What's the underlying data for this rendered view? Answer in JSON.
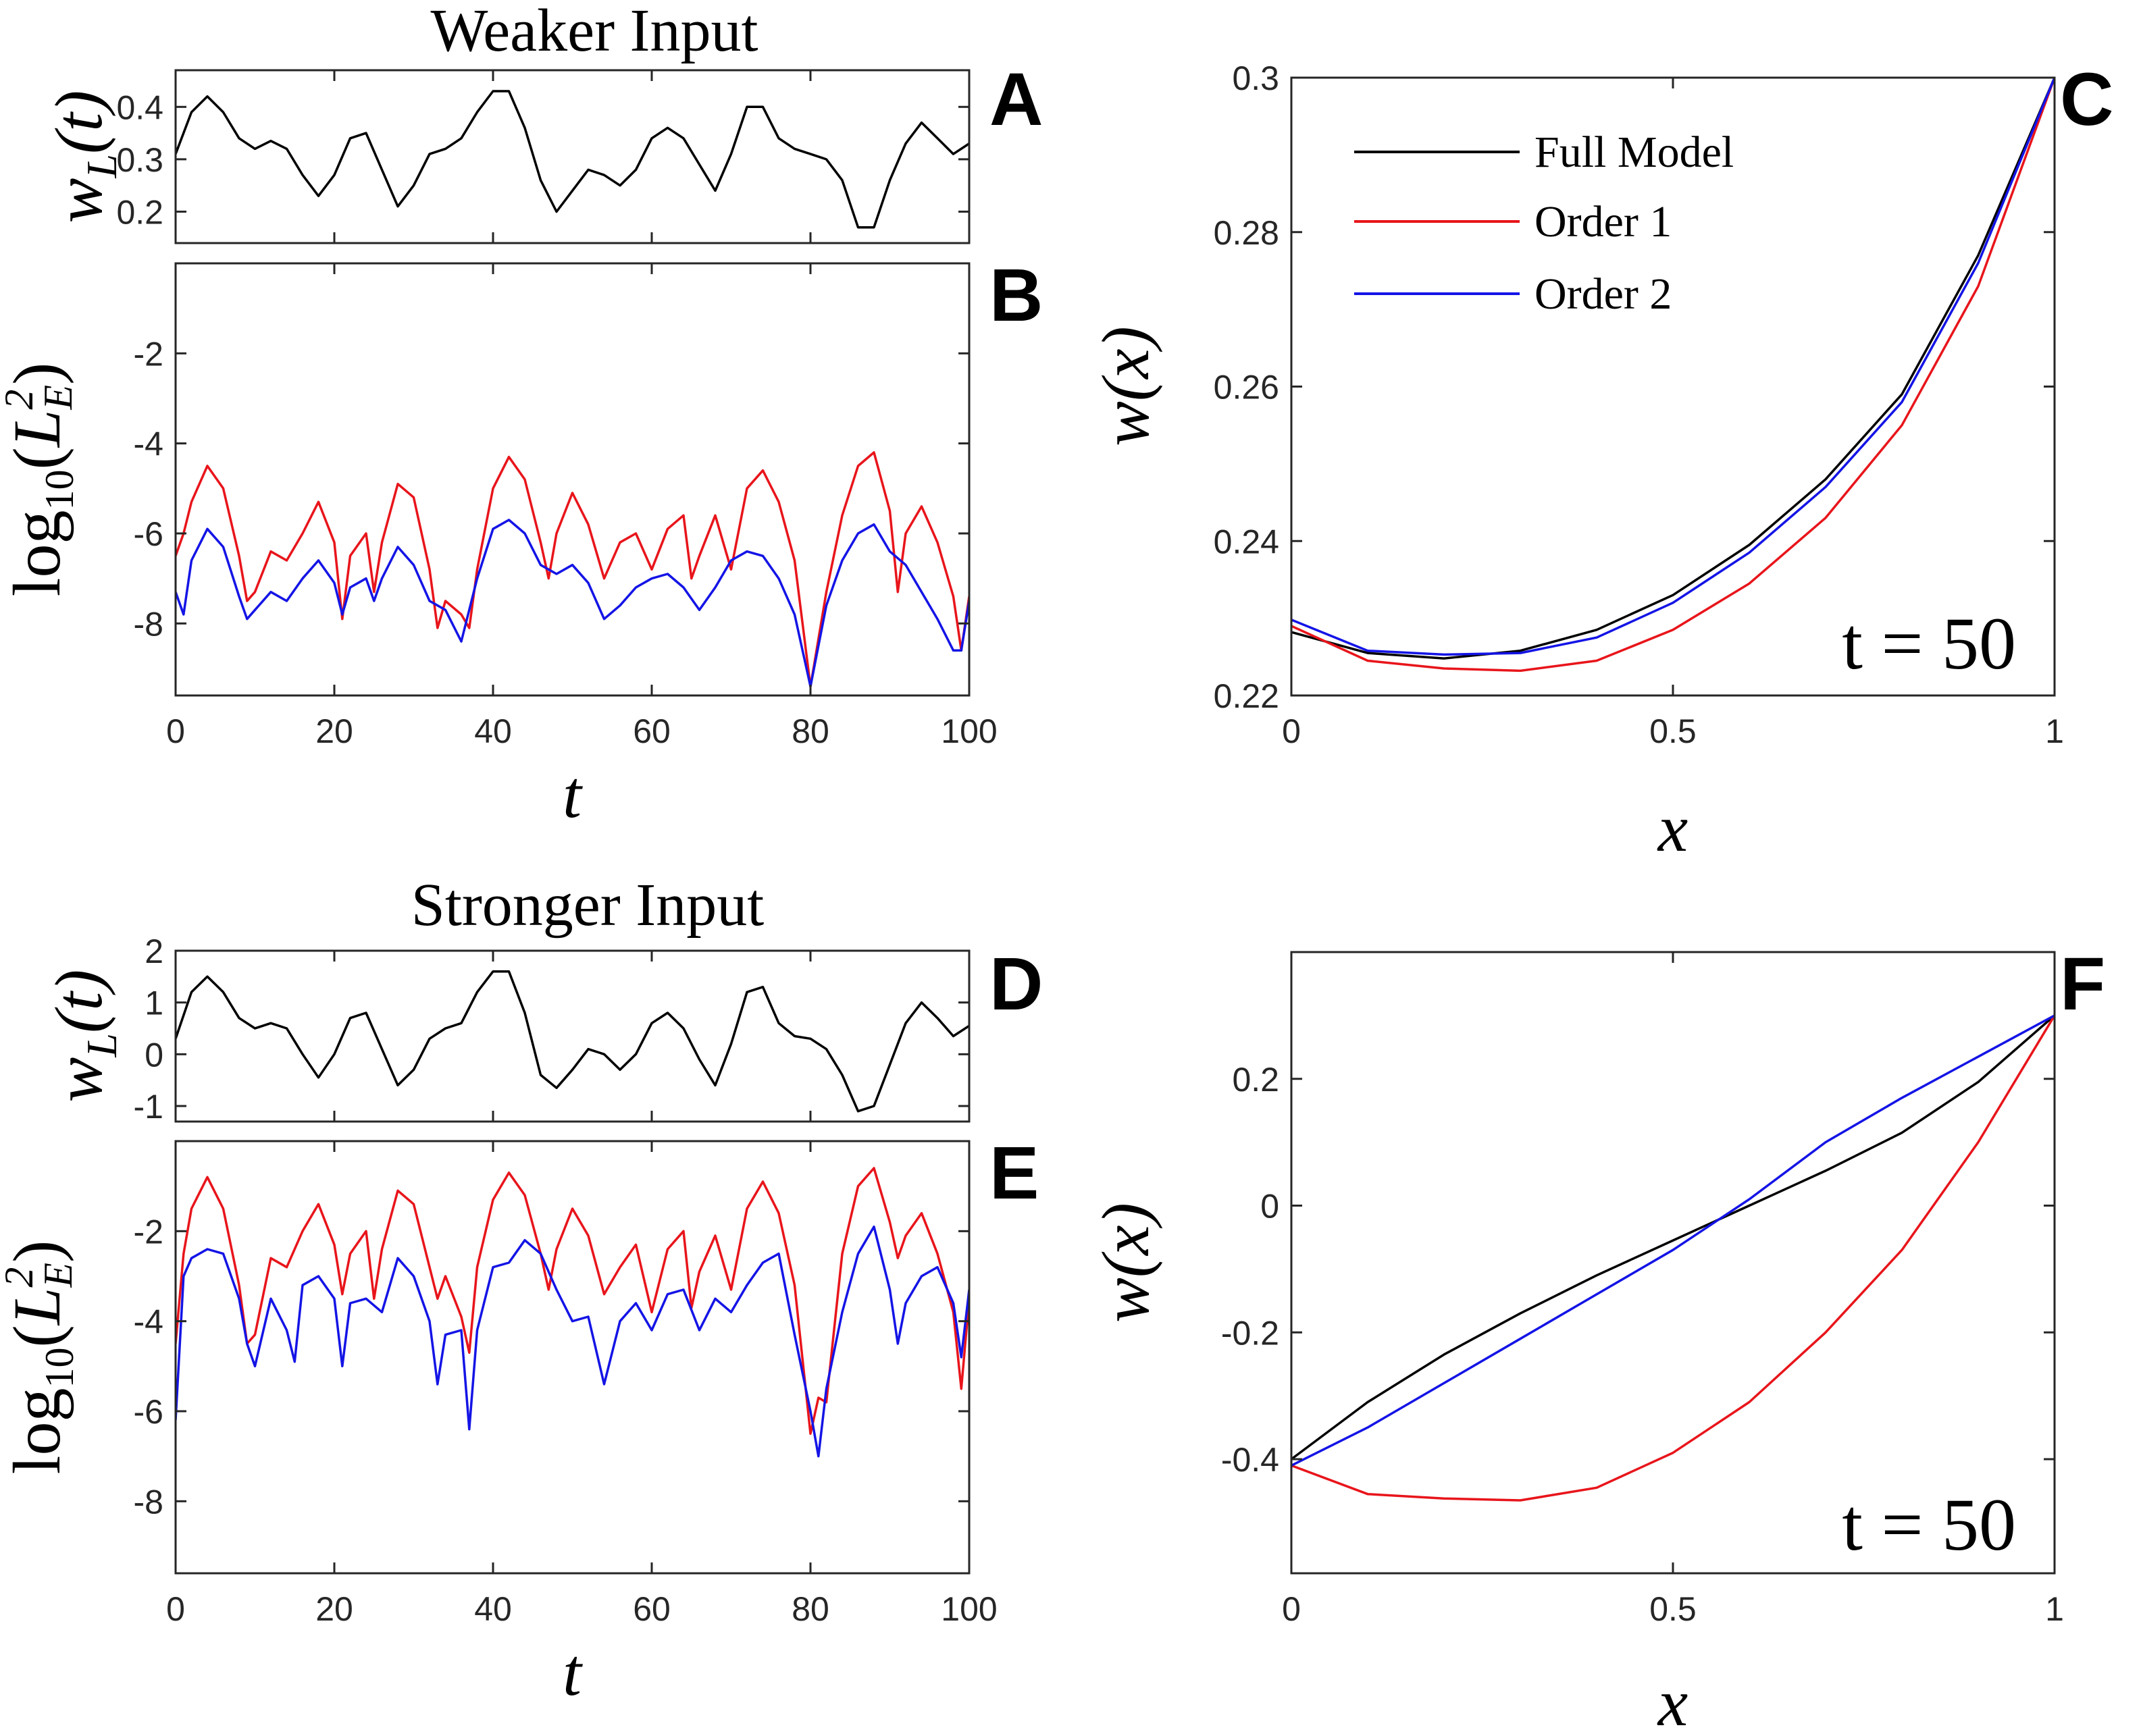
{
  "figure": {
    "panel_letters": {
      "A": "A",
      "B": "B",
      "C": "C",
      "D": "D",
      "E": "E",
      "F": "F"
    },
    "row_titles": {
      "top": "Weaker Input",
      "bottom": "Stronger Input"
    }
  },
  "colors": {
    "full_model": "#000000",
    "order1": "#e8151b",
    "order2": "#1414e6"
  },
  "chart_data": [
    {
      "id": "A",
      "type": "line",
      "title": "Weaker Input",
      "xlabel": "",
      "ylabel": "w_L(t)",
      "xlim": [
        0,
        100
      ],
      "ylim": [
        0.14,
        0.47
      ],
      "xticks": [
        0,
        20,
        40,
        60,
        80,
        100
      ],
      "show_xtick_labels": false,
      "yticks": [
        0.2,
        0.3,
        0.4
      ],
      "ytick_labels": [
        "0.2",
        "0.3",
        "0.4"
      ],
      "series": [
        {
          "name": "w_L",
          "color": "#000000",
          "x": [
            0,
            2,
            4,
            6,
            8,
            10,
            12,
            14,
            16,
            18,
            20,
            22,
            24,
            26,
            28,
            30,
            32,
            34,
            36,
            38,
            40,
            42,
            44,
            46,
            48,
            50,
            52,
            54,
            56,
            58,
            60,
            62,
            64,
            66,
            68,
            70,
            72,
            74,
            76,
            78,
            80,
            82,
            84,
            86,
            88,
            90,
            92,
            94,
            96,
            98,
            100
          ],
          "y": [
            0.31,
            0.39,
            0.42,
            0.39,
            0.34,
            0.32,
            0.335,
            0.32,
            0.27,
            0.23,
            0.27,
            0.34,
            0.35,
            0.28,
            0.21,
            0.25,
            0.31,
            0.32,
            0.34,
            0.39,
            0.43,
            0.43,
            0.36,
            0.26,
            0.2,
            0.24,
            0.28,
            0.27,
            0.25,
            0.28,
            0.34,
            0.36,
            0.34,
            0.29,
            0.24,
            0.31,
            0.4,
            0.4,
            0.34,
            0.32,
            0.31,
            0.3,
            0.26,
            0.17,
            0.17,
            0.26,
            0.33,
            0.37,
            0.34,
            0.31,
            0.33
          ]
        }
      ]
    },
    {
      "id": "B",
      "type": "line",
      "xlabel": "t",
      "ylabel": "log10(L_E^2)",
      "xlim": [
        0,
        100
      ],
      "ylim": [
        -9.6,
        0
      ],
      "xticks": [
        0,
        20,
        40,
        60,
        80,
        100
      ],
      "xtick_labels": [
        "0",
        "20",
        "40",
        "60",
        "80",
        "100"
      ],
      "yticks": [
        -8,
        -6,
        -4,
        -2
      ],
      "ytick_labels": [
        "-8",
        "-6",
        "-4",
        "-2"
      ],
      "series": [
        {
          "name": "Order 1",
          "color": "#e8151b",
          "x": [
            0,
            1,
            2,
            4,
            6,
            8,
            9,
            10,
            12,
            14,
            16,
            18,
            20,
            21,
            22,
            24,
            25,
            26,
            28,
            30,
            32,
            33,
            34,
            36,
            37,
            38,
            40,
            42,
            44,
            46,
            47,
            48,
            50,
            52,
            54,
            56,
            58,
            60,
            62,
            64,
            65,
            66,
            68,
            70,
            72,
            74,
            76,
            78,
            80,
            82,
            84,
            86,
            88,
            90,
            91,
            92,
            94,
            96,
            98,
            99,
            100
          ],
          "y": [
            -6.5,
            -6.0,
            -5.3,
            -4.5,
            -5.0,
            -6.5,
            -7.5,
            -7.3,
            -6.4,
            -6.6,
            -6.0,
            -5.3,
            -6.2,
            -7.9,
            -6.5,
            -6.0,
            -7.3,
            -6.2,
            -4.9,
            -5.2,
            -6.8,
            -8.1,
            -7.5,
            -7.8,
            -8.1,
            -6.8,
            -5.0,
            -4.3,
            -4.8,
            -6.2,
            -7.0,
            -6.0,
            -5.1,
            -5.8,
            -7.0,
            -6.2,
            -6.0,
            -6.8,
            -5.9,
            -5.6,
            -7.0,
            -6.5,
            -5.6,
            -6.8,
            -5.0,
            -4.6,
            -5.3,
            -6.6,
            -9.4,
            -7.3,
            -5.6,
            -4.5,
            -4.2,
            -5.5,
            -7.3,
            -6.0,
            -5.4,
            -6.2,
            -7.4,
            -8.6,
            -7.4
          ]
        },
        {
          "name": "Order 2",
          "color": "#1414e6",
          "x": [
            0,
            1,
            2,
            4,
            6,
            8,
            9,
            10,
            12,
            14,
            16,
            18,
            20,
            21,
            22,
            24,
            25,
            26,
            28,
            30,
            32,
            34,
            36,
            38,
            40,
            42,
            44,
            46,
            48,
            50,
            52,
            54,
            56,
            58,
            60,
            62,
            64,
            66,
            68,
            70,
            72,
            74,
            76,
            78,
            80,
            82,
            84,
            86,
            88,
            90,
            92,
            94,
            96,
            98,
            99,
            100
          ],
          "y": [
            -7.3,
            -7.8,
            -6.6,
            -5.9,
            -6.3,
            -7.4,
            -7.9,
            -7.7,
            -7.3,
            -7.5,
            -7.0,
            -6.6,
            -7.1,
            -7.8,
            -7.2,
            -7.0,
            -7.5,
            -7.0,
            -6.3,
            -6.7,
            -7.5,
            -7.7,
            -8.4,
            -7.0,
            -5.9,
            -5.7,
            -6.0,
            -6.7,
            -6.9,
            -6.7,
            -7.1,
            -7.9,
            -7.6,
            -7.2,
            -7.0,
            -6.9,
            -7.2,
            -7.7,
            -7.2,
            -6.6,
            -6.4,
            -6.5,
            -7.0,
            -7.8,
            -9.4,
            -7.6,
            -6.6,
            -6.0,
            -5.8,
            -6.4,
            -6.7,
            -7.3,
            -7.9,
            -8.6,
            -8.6,
            -7.5
          ]
        }
      ]
    },
    {
      "id": "C",
      "type": "line",
      "xlabel": "x",
      "ylabel": "w(x)",
      "xlim": [
        0,
        1
      ],
      "ylim": [
        0.22,
        0.3
      ],
      "xticks": [
        0,
        0.5,
        1
      ],
      "xtick_labels": [
        "0",
        "0.5",
        "1"
      ],
      "yticks": [
        0.22,
        0.24,
        0.26,
        0.28,
        0.3
      ],
      "ytick_labels": [
        "0.22",
        "0.24",
        "0.26",
        "0.28",
        "0.3"
      ],
      "annotation": "t = 50",
      "legend": {
        "position": "top-left",
        "entries": [
          "Full Model",
          "Order 1",
          "Order 2"
        ]
      },
      "series": [
        {
          "name": "Full Model",
          "color": "#000000",
          "x": [
            0,
            0.1,
            0.2,
            0.3,
            0.4,
            0.5,
            0.6,
            0.7,
            0.8,
            0.9,
            1.0
          ],
          "y": [
            0.2282,
            0.2255,
            0.2248,
            0.2258,
            0.2285,
            0.233,
            0.2395,
            0.248,
            0.259,
            0.277,
            0.3
          ]
        },
        {
          "name": "Order 1",
          "color": "#e8151b",
          "x": [
            0,
            0.1,
            0.2,
            0.3,
            0.4,
            0.5,
            0.6,
            0.7,
            0.8,
            0.9,
            1.0
          ],
          "y": [
            0.229,
            0.2245,
            0.2235,
            0.2232,
            0.2245,
            0.2285,
            0.2345,
            0.243,
            0.255,
            0.273,
            0.3
          ]
        },
        {
          "name": "Order 2",
          "color": "#1414e6",
          "x": [
            0,
            0.1,
            0.2,
            0.3,
            0.4,
            0.5,
            0.6,
            0.7,
            0.8,
            0.9,
            1.0
          ],
          "y": [
            0.2298,
            0.2258,
            0.2253,
            0.2255,
            0.2275,
            0.232,
            0.2385,
            0.247,
            0.258,
            0.276,
            0.3
          ]
        }
      ]
    },
    {
      "id": "D",
      "type": "line",
      "title": "Stronger Input",
      "xlabel": "",
      "ylabel": "w_L(t)",
      "xlim": [
        0,
        100
      ],
      "ylim": [
        -1.3,
        2.0
      ],
      "xticks": [
        0,
        20,
        40,
        60,
        80,
        100
      ],
      "show_xtick_labels": false,
      "yticks": [
        -1,
        0,
        1,
        2
      ],
      "ytick_labels": [
        "-1",
        "0",
        "1",
        "2"
      ],
      "series": [
        {
          "name": "w_L",
          "color": "#000000",
          "x": [
            0,
            2,
            4,
            6,
            8,
            10,
            12,
            14,
            16,
            18,
            20,
            22,
            24,
            26,
            28,
            30,
            32,
            34,
            36,
            38,
            40,
            42,
            44,
            46,
            48,
            50,
            52,
            54,
            56,
            58,
            60,
            62,
            64,
            66,
            68,
            70,
            72,
            74,
            76,
            78,
            80,
            82,
            84,
            86,
            88,
            90,
            92,
            94,
            96,
            98,
            100
          ],
          "y": [
            0.3,
            1.2,
            1.5,
            1.2,
            0.7,
            0.5,
            0.6,
            0.5,
            0.0,
            -0.45,
            0.0,
            0.7,
            0.8,
            0.1,
            -0.6,
            -0.3,
            0.3,
            0.5,
            0.6,
            1.2,
            1.6,
            1.6,
            0.8,
            -0.4,
            -0.65,
            -0.3,
            0.1,
            0.0,
            -0.3,
            0.0,
            0.6,
            0.8,
            0.5,
            -0.1,
            -0.6,
            0.2,
            1.2,
            1.3,
            0.6,
            0.35,
            0.3,
            0.1,
            -0.4,
            -1.1,
            -1.0,
            -0.2,
            0.6,
            1.0,
            0.7,
            0.35,
            0.55
          ]
        }
      ]
    },
    {
      "id": "E",
      "type": "line",
      "xlabel": "t",
      "ylabel": "log10(L_E^2)",
      "xlim": [
        0,
        100
      ],
      "ylim": [
        -9.6,
        0
      ],
      "xticks": [
        0,
        20,
        40,
        60,
        80,
        100
      ],
      "xtick_labels": [
        "0",
        "20",
        "40",
        "60",
        "80",
        "100"
      ],
      "yticks": [
        -8,
        -6,
        -4,
        -2
      ],
      "ytick_labels": [
        "-8",
        "-6",
        "-4",
        "-2"
      ],
      "series": [
        {
          "name": "Order 1",
          "color": "#e8151b",
          "x": [
            0,
            1,
            2,
            4,
            6,
            8,
            9,
            10,
            12,
            14,
            16,
            18,
            20,
            21,
            22,
            24,
            25,
            26,
            28,
            30,
            32,
            33,
            34,
            36,
            37,
            38,
            40,
            42,
            44,
            46,
            47,
            48,
            50,
            52,
            54,
            56,
            58,
            60,
            62,
            64,
            65,
            66,
            68,
            70,
            72,
            74,
            76,
            78,
            80,
            81,
            82,
            84,
            86,
            88,
            90,
            91,
            92,
            94,
            96,
            98,
            99,
            100
          ],
          "y": [
            -4.5,
            -2.5,
            -1.5,
            -0.8,
            -1.5,
            -3.2,
            -4.5,
            -4.3,
            -2.6,
            -2.8,
            -2.0,
            -1.4,
            -2.3,
            -3.4,
            -2.5,
            -2.0,
            -3.5,
            -2.4,
            -1.1,
            -1.4,
            -2.8,
            -3.5,
            -3.0,
            -3.9,
            -4.7,
            -2.8,
            -1.3,
            -0.7,
            -1.2,
            -2.5,
            -3.3,
            -2.4,
            -1.5,
            -2.1,
            -3.4,
            -2.8,
            -2.3,
            -3.8,
            -2.4,
            -2.0,
            -3.7,
            -2.9,
            -2.1,
            -3.3,
            -1.5,
            -0.9,
            -1.6,
            -3.2,
            -6.5,
            -5.7,
            -5.8,
            -2.5,
            -1.0,
            -0.6,
            -1.8,
            -2.6,
            -2.1,
            -1.6,
            -2.5,
            -3.8,
            -5.5,
            -3.5
          ]
        },
        {
          "name": "Order 2",
          "color": "#1414e6",
          "x": [
            0,
            1,
            2,
            4,
            6,
            8,
            9,
            10,
            12,
            14,
            15,
            16,
            18,
            20,
            21,
            22,
            24,
            26,
            28,
            30,
            32,
            33,
            34,
            36,
            37,
            38,
            40,
            42,
            44,
            46,
            48,
            50,
            52,
            54,
            56,
            58,
            60,
            62,
            64,
            66,
            68,
            70,
            72,
            74,
            76,
            78,
            80,
            81,
            82,
            84,
            86,
            88,
            90,
            91,
            92,
            94,
            96,
            98,
            99,
            100
          ],
          "y": [
            -6.2,
            -3.0,
            -2.6,
            -2.4,
            -2.5,
            -3.5,
            -4.5,
            -5.0,
            -3.5,
            -4.2,
            -4.9,
            -3.2,
            -3.0,
            -3.5,
            -5.0,
            -3.6,
            -3.5,
            -3.8,
            -2.6,
            -3.0,
            -4.0,
            -5.4,
            -4.3,
            -4.2,
            -6.4,
            -4.2,
            -2.8,
            -2.7,
            -2.2,
            -2.5,
            -3.3,
            -4.0,
            -3.9,
            -5.4,
            -4.0,
            -3.6,
            -4.2,
            -3.4,
            -3.3,
            -4.2,
            -3.5,
            -3.8,
            -3.2,
            -2.7,
            -2.5,
            -4.3,
            -6.0,
            -7.0,
            -5.5,
            -3.8,
            -2.5,
            -1.9,
            -3.3,
            -4.5,
            -3.6,
            -3.0,
            -2.8,
            -3.6,
            -4.8,
            -3.3
          ]
        }
      ]
    },
    {
      "id": "F",
      "type": "line",
      "xlabel": "x",
      "ylabel": "w(x)",
      "xlim": [
        0,
        1
      ],
      "ylim": [
        -0.58,
        0.4
      ],
      "xticks": [
        0,
        0.5,
        1
      ],
      "xtick_labels": [
        "0",
        "0.5",
        "1"
      ],
      "yticks": [
        -0.4,
        -0.2,
        0,
        0.2
      ],
      "ytick_labels": [
        "-0.4",
        "-0.2",
        "0",
        "0.2"
      ],
      "annotation": "t = 50",
      "series": [
        {
          "name": "Full Model",
          "color": "#000000",
          "x": [
            0,
            0.1,
            0.2,
            0.3,
            0.4,
            0.5,
            0.6,
            0.7,
            0.8,
            0.9,
            1.0
          ],
          "y": [
            -0.4,
            -0.31,
            -0.235,
            -0.17,
            -0.11,
            -0.055,
            0.0,
            0.055,
            0.115,
            0.195,
            0.3
          ]
        },
        {
          "name": "Order 1",
          "color": "#e8151b",
          "x": [
            0,
            0.1,
            0.2,
            0.3,
            0.4,
            0.5,
            0.6,
            0.7,
            0.8,
            0.9,
            1.0
          ],
          "y": [
            -0.41,
            -0.455,
            -0.462,
            -0.465,
            -0.445,
            -0.39,
            -0.31,
            -0.2,
            -0.07,
            0.1,
            0.3
          ]
        },
        {
          "name": "Order 2",
          "color": "#1414e6",
          "x": [
            0,
            0.1,
            0.2,
            0.3,
            0.4,
            0.5,
            0.6,
            0.7,
            0.8,
            0.9,
            1.0
          ],
          "y": [
            -0.41,
            -0.35,
            -0.28,
            -0.21,
            -0.14,
            -0.07,
            0.01,
            0.1,
            0.17,
            0.235,
            0.3
          ]
        }
      ]
    }
  ]
}
